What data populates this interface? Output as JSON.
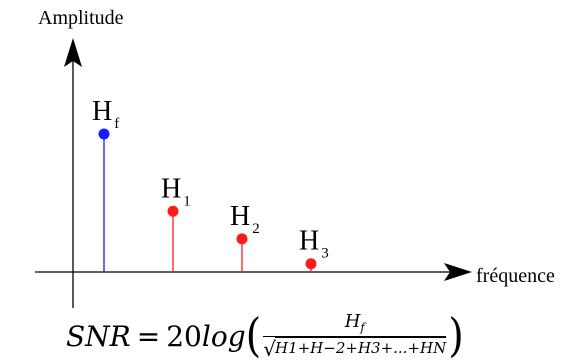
{
  "axes": {
    "y_label": "Amplitude",
    "x_label": "fréquence"
  },
  "harmonics": [
    {
      "id": "Hf",
      "label_main": "H",
      "label_sub": "f",
      "amplitude": 1.0,
      "color": "#1a1aff"
    },
    {
      "id": "H1",
      "label_main": "H",
      "label_sub": "1",
      "amplitude": 0.44,
      "color": "#ff1a1a"
    },
    {
      "id": "H2",
      "label_main": "H",
      "label_sub": "2",
      "amplitude": 0.24,
      "color": "#ff1a1a"
    },
    {
      "id": "H3",
      "label_main": "H",
      "label_sub": "3",
      "amplitude": 0.06,
      "color": "#ff1a1a"
    }
  ],
  "formula": {
    "lhs": "SNR",
    "equals": "=",
    "coefficient": "20",
    "function": "log",
    "numerator_main": "H",
    "numerator_sub": "f",
    "denominator": "H1+H−2+H3+...+HN"
  }
}
